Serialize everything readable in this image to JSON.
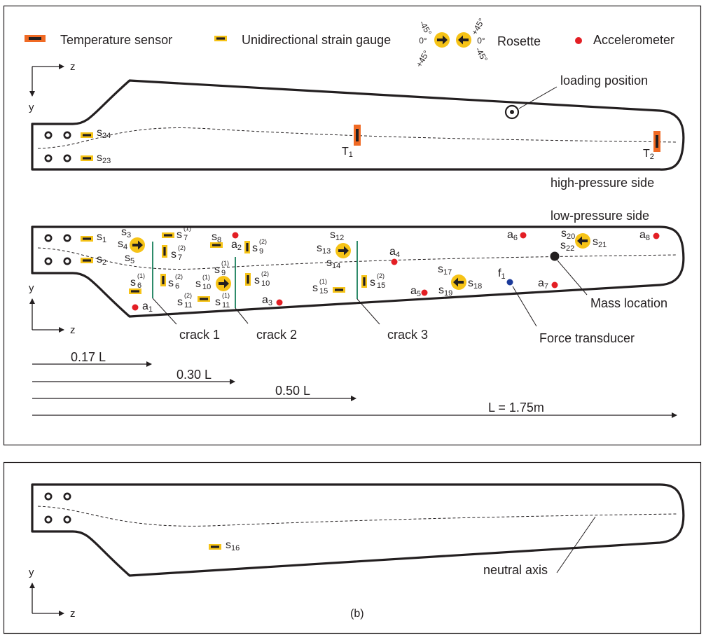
{
  "legend": {
    "temperature": "Temperature sensor",
    "strain": "Unidirectional strain gauge",
    "rosette": "Rosette",
    "accel": "Accelerometer",
    "rosette_angles": {
      "left_top": "-45°",
      "left_mid": "0°",
      "left_bot": "+45°",
      "right_top": "+45°",
      "right_mid": "0°",
      "right_bot": "-45°"
    }
  },
  "axes": {
    "z": "z",
    "y": "y"
  },
  "panel_top": {
    "annotations": {
      "loading": "loading position",
      "side": "high-pressure side"
    },
    "sensors": {
      "s24": {
        "base": "s",
        "sub": "24"
      },
      "s23": {
        "base": "s",
        "sub": "23"
      },
      "T1": {
        "base": "T",
        "sub": "1"
      },
      "T2": {
        "base": "T",
        "sub": "2"
      }
    }
  },
  "panel_mid": {
    "side": "low-pressure side",
    "cracks": [
      "crack 1",
      "crack 2",
      "crack 3"
    ],
    "mass": "Mass location",
    "force": "Force transducer",
    "dims": [
      "0.17 L",
      "0.30 L",
      "0.50 L",
      "L = 1.75m"
    ],
    "labels": {
      "s1": {
        "base": "s",
        "sub": "1"
      },
      "s2": {
        "base": "s",
        "sub": "2"
      },
      "s3": {
        "base": "s",
        "sub": "3"
      },
      "s4": {
        "base": "s",
        "sub": "4"
      },
      "s5": {
        "base": "s",
        "sub": "5"
      },
      "s6a": {
        "base": "s",
        "sub": "6",
        "sup": "(1)"
      },
      "s6b": {
        "base": "s",
        "sub": "6",
        "sup": "(2)"
      },
      "s7a": {
        "base": "s",
        "sub": "7",
        "sup": "(1)"
      },
      "s7b": {
        "base": "s",
        "sub": "7",
        "sup": "(2)"
      },
      "s8": {
        "base": "s",
        "sub": "8"
      },
      "s9a": {
        "base": "s",
        "sub": "9",
        "sup": "(1)"
      },
      "s9b": {
        "base": "s",
        "sub": "9",
        "sup": "(2)"
      },
      "s10a": {
        "base": "s",
        "sub": "10",
        "sup": "(1)"
      },
      "s10b": {
        "base": "s",
        "sub": "10",
        "sup": "(2)"
      },
      "s11a": {
        "base": "s",
        "sub": "11",
        "sup": "(1)"
      },
      "s11b": {
        "base": "s",
        "sub": "11",
        "sup": "(2)"
      },
      "s12": {
        "base": "s",
        "sub": "12"
      },
      "s13": {
        "base": "s",
        "sub": "13"
      },
      "s14": {
        "base": "s",
        "sub": "14"
      },
      "s15a": {
        "base": "s",
        "sub": "15",
        "sup": "(1)"
      },
      "s15b": {
        "base": "s",
        "sub": "15",
        "sup": "(2)"
      },
      "s17": {
        "base": "s",
        "sub": "17"
      },
      "s18": {
        "base": "s",
        "sub": "18"
      },
      "s19": {
        "base": "s",
        "sub": "19"
      },
      "s20": {
        "base": "s",
        "sub": "20"
      },
      "s21": {
        "base": "s",
        "sub": "21"
      },
      "s22": {
        "base": "s",
        "sub": "22"
      },
      "a1": {
        "base": "a",
        "sub": "1"
      },
      "a2": {
        "base": "a",
        "sub": "2"
      },
      "a3": {
        "base": "a",
        "sub": "3"
      },
      "a4": {
        "base": "a",
        "sub": "4"
      },
      "a5": {
        "base": "a",
        "sub": "5"
      },
      "a6": {
        "base": "a",
        "sub": "6"
      },
      "a7": {
        "base": "a",
        "sub": "7"
      },
      "a8": {
        "base": "a",
        "sub": "8"
      },
      "f1": {
        "base": "f",
        "sub": "1"
      }
    }
  },
  "panel_bottom": {
    "s16": {
      "base": "s",
      "sub": "16"
    },
    "axis": "neutral axis",
    "caption": "(b)"
  },
  "colors": {
    "gauge_fill": "#f6c317",
    "temp_fill": "#f06a24",
    "accel": "#e31e24",
    "force": "#1b3a9a",
    "crack": "#2e8b6a",
    "ink": "#231f20"
  }
}
